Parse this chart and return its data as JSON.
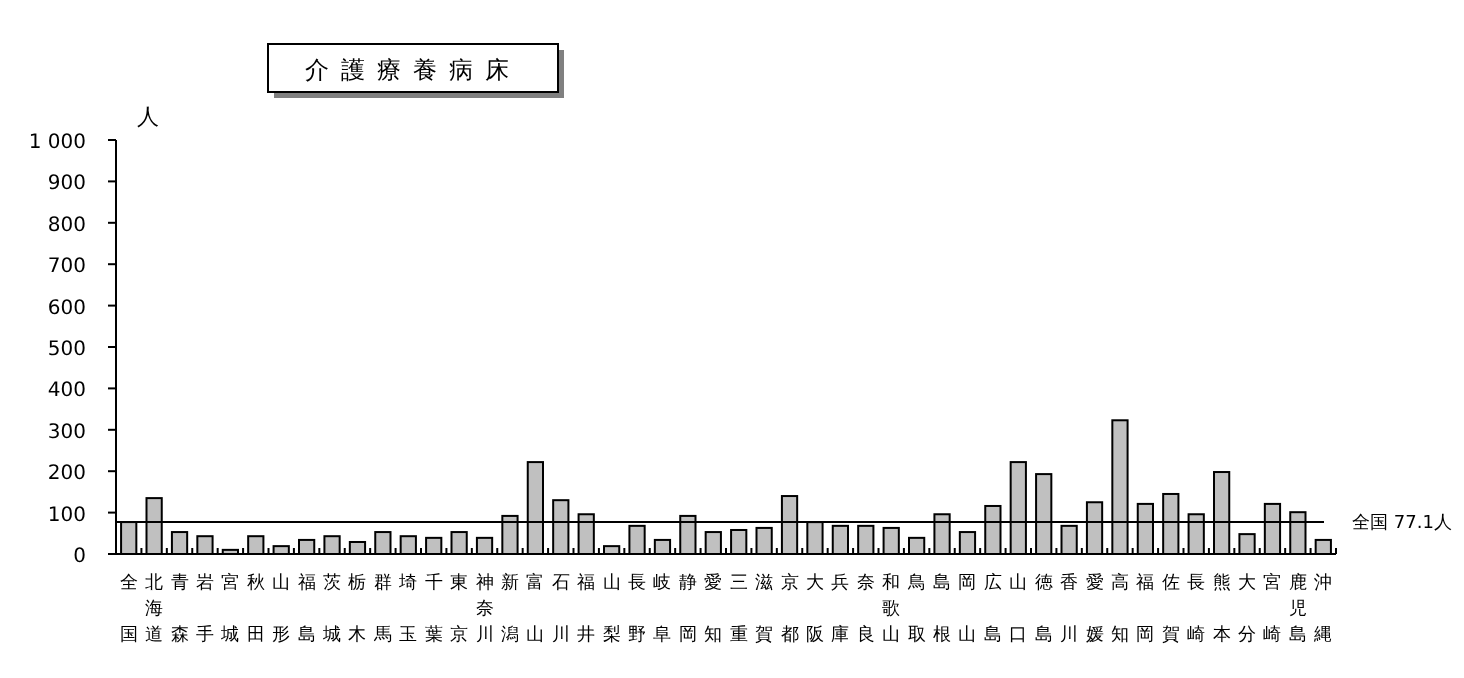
{
  "chart_data": {
    "type": "bar",
    "title": "介護療養病床",
    "ylabel": "人",
    "categories": [
      "全国",
      "北海道",
      "青森",
      "岩手",
      "宮城",
      "秋田",
      "山形",
      "福島",
      "茨城",
      "栃木",
      "群馬",
      "埼玉",
      "千葉",
      "東京",
      "神奈川",
      "新潟",
      "富山",
      "石川",
      "福井",
      "山梨",
      "長野",
      "岐阜",
      "静岡",
      "愛知",
      "三重",
      "滋賀",
      "京都",
      "大阪",
      "兵庫",
      "奈良",
      "和歌山",
      "鳥取",
      "島根",
      "岡山",
      "広島",
      "山口",
      "徳島",
      "香川",
      "愛媛",
      "高知",
      "福岡",
      "佐賀",
      "長崎",
      "熊本",
      "大分",
      "宮崎",
      "鹿児島",
      "沖縄"
    ],
    "values": [
      77.1,
      135,
      53,
      43,
      10,
      43,
      19,
      34,
      43,
      29,
      53,
      43,
      39,
      53,
      39,
      92,
      222,
      130,
      96,
      19,
      68,
      34,
      92,
      53,
      58,
      63,
      140,
      77,
      68,
      68,
      63,
      39,
      96,
      53,
      116,
      222,
      193,
      68,
      125,
      323,
      121,
      145,
      96,
      198,
      48,
      121,
      101,
      34
    ],
    "color": "#c0c0c0",
    "ylim": [
      0,
      1000
    ],
    "yticks": [
      0,
      100,
      200,
      300,
      400,
      500,
      600,
      700,
      800,
      900,
      {
        "value": 1000,
        "label": "1 000"
      }
    ],
    "ref_lines": [
      {
        "axis": "y",
        "value": 77.1,
        "label": "全国 77.1人",
        "color": "#000000"
      }
    ]
  }
}
